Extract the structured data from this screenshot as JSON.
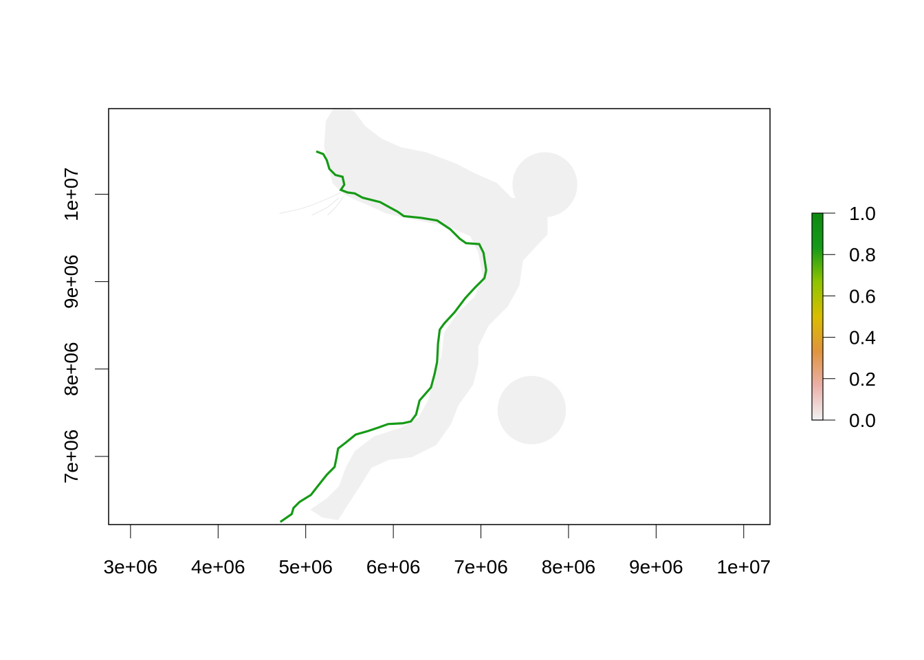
{
  "chart_data": {
    "type": "heatmap",
    "xlim": [
      2750000,
      10300000
    ],
    "ylim": [
      6220000,
      10980000
    ],
    "x_ticks": [
      3000000,
      4000000,
      5000000,
      6000000,
      7000000,
      8000000,
      9000000,
      10000000
    ],
    "x_tick_labels": [
      "3e+06",
      "4e+06",
      "5e+06",
      "6e+06",
      "7e+06",
      "8e+06",
      "9e+06",
      "1e+07"
    ],
    "y_ticks": [
      7000000,
      8000000,
      9000000,
      10000000
    ],
    "y_tick_labels": [
      "7e+06",
      "8e+06",
      "9e+06",
      "1e+07"
    ],
    "colorbar": {
      "min": 0,
      "max": 1,
      "tick_values": [
        0.0,
        0.2,
        0.4,
        0.6,
        0.8,
        1.0
      ],
      "tick_labels": [
        "0.0",
        "0.2",
        "0.4",
        "0.6",
        "0.8",
        "1.0"
      ],
      "colors": [
        "#f2f2f2",
        "#eab0a8",
        "#e0943e",
        "#d9bd00",
        "#8fc400",
        "#159a1a",
        "#0d8a10"
      ]
    },
    "buffer_color": "#f0f0f0",
    "line_color": "#169a16",
    "buffer_polygon": [
      [
        5370000,
        11070000
      ],
      [
        5560000,
        10940000
      ],
      [
        5680000,
        10780000
      ],
      [
        5860000,
        10640000
      ],
      [
        6080000,
        10540000
      ],
      [
        6380000,
        10480000
      ],
      [
        6720000,
        10350000
      ],
      [
        6950000,
        10230000
      ],
      [
        7180000,
        10130000
      ],
      [
        7350000,
        9960000
      ],
      [
        7560000,
        9940000
      ],
      [
        7760000,
        9780000
      ],
      [
        7760000,
        9540000
      ],
      [
        7600000,
        9370000
      ],
      [
        7480000,
        9240000
      ],
      [
        7440000,
        8960000
      ],
      [
        7310000,
        8720000
      ],
      [
        7090000,
        8500000
      ],
      [
        6970000,
        8260000
      ],
      [
        6970000,
        8050000
      ],
      [
        6910000,
        7820000
      ],
      [
        6740000,
        7580000
      ],
      [
        6660000,
        7370000
      ],
      [
        6490000,
        7130000
      ],
      [
        6210000,
        6990000
      ],
      [
        5950000,
        6960000
      ],
      [
        5750000,
        6870000
      ],
      [
        5620000,
        6660000
      ],
      [
        5490000,
        6460000
      ],
      [
        5370000,
        6270000
      ],
      [
        5190000,
        6300000
      ],
      [
        5050000,
        6390000
      ],
      [
        5240000,
        6520000
      ],
      [
        5380000,
        6660000
      ],
      [
        5460000,
        6880000
      ],
      [
        5560000,
        7060000
      ],
      [
        5780000,
        7230000
      ],
      [
        6090000,
        7330000
      ],
      [
        6290000,
        7450000
      ],
      [
        6400000,
        7650000
      ],
      [
        6460000,
        7900000
      ],
      [
        6550000,
        8150000
      ],
      [
        6580000,
        8420000
      ],
      [
        6740000,
        8650000
      ],
      [
        6930000,
        8830000
      ],
      [
        7020000,
        9060000
      ],
      [
        6970000,
        9330000
      ],
      [
        6880000,
        9520000
      ],
      [
        6600000,
        9640000
      ],
      [
        6280000,
        9700000
      ],
      [
        5920000,
        9780000
      ],
      [
        5700000,
        9880000
      ],
      [
        5580000,
        9930000
      ],
      [
        5440000,
        10000000
      ],
      [
        5310000,
        10120000
      ],
      [
        5260000,
        10300000
      ],
      [
        5210000,
        10550000
      ],
      [
        5230000,
        10840000
      ]
    ],
    "buffer_circles": [
      {
        "cx": 7730000,
        "cy": 10110000,
        "r": 370000
      },
      {
        "cx": 7580000,
        "cy": 7530000,
        "r": 390000
      }
    ],
    "line_path": [
      [
        5120000,
        10490000
      ],
      [
        5200000,
        10460000
      ],
      [
        5240000,
        10390000
      ],
      [
        5270000,
        10290000
      ],
      [
        5340000,
        10220000
      ],
      [
        5420000,
        10200000
      ],
      [
        5440000,
        10110000
      ],
      [
        5400000,
        10050000
      ],
      [
        5480000,
        10020000
      ],
      [
        5560000,
        10010000
      ],
      [
        5650000,
        9960000
      ],
      [
        5850000,
        9910000
      ],
      [
        5940000,
        9860000
      ],
      [
        6050000,
        9800000
      ],
      [
        6120000,
        9750000
      ],
      [
        6320000,
        9730000
      ],
      [
        6500000,
        9700000
      ],
      [
        6650000,
        9600000
      ],
      [
        6760000,
        9490000
      ],
      [
        6830000,
        9440000
      ],
      [
        6980000,
        9430000
      ],
      [
        7030000,
        9330000
      ],
      [
        7060000,
        9130000
      ],
      [
        7040000,
        9040000
      ],
      [
        6930000,
        8930000
      ],
      [
        6820000,
        8810000
      ],
      [
        6700000,
        8650000
      ],
      [
        6580000,
        8520000
      ],
      [
        6530000,
        8450000
      ],
      [
        6510000,
        8290000
      ],
      [
        6500000,
        8080000
      ],
      [
        6470000,
        7940000
      ],
      [
        6430000,
        7790000
      ],
      [
        6300000,
        7640000
      ],
      [
        6260000,
        7480000
      ],
      [
        6200000,
        7400000
      ],
      [
        6110000,
        7380000
      ],
      [
        5940000,
        7370000
      ],
      [
        5830000,
        7330000
      ],
      [
        5710000,
        7290000
      ],
      [
        5570000,
        7250000
      ],
      [
        5460000,
        7160000
      ],
      [
        5370000,
        7090000
      ],
      [
        5350000,
        6980000
      ],
      [
        5330000,
        6880000
      ],
      [
        5240000,
        6790000
      ],
      [
        5130000,
        6650000
      ],
      [
        5060000,
        6560000
      ],
      [
        4930000,
        6480000
      ],
      [
        4860000,
        6410000
      ],
      [
        4840000,
        6340000
      ],
      [
        4710000,
        6250000
      ]
    ],
    "faint_traces": [
      [
        [
          5400000,
          10020000
        ],
        [
          5250000,
          9950000
        ],
        [
          5080000,
          9880000
        ],
        [
          4930000,
          9830000
        ],
        [
          4700000,
          9780000
        ]
      ],
      [
        [
          5380000,
          9960000
        ],
        [
          5250000,
          9850000
        ],
        [
          5070000,
          9760000
        ]
      ],
      [
        [
          5430000,
          9970000
        ],
        [
          5350000,
          9860000
        ],
        [
          5250000,
          9760000
        ]
      ]
    ]
  }
}
